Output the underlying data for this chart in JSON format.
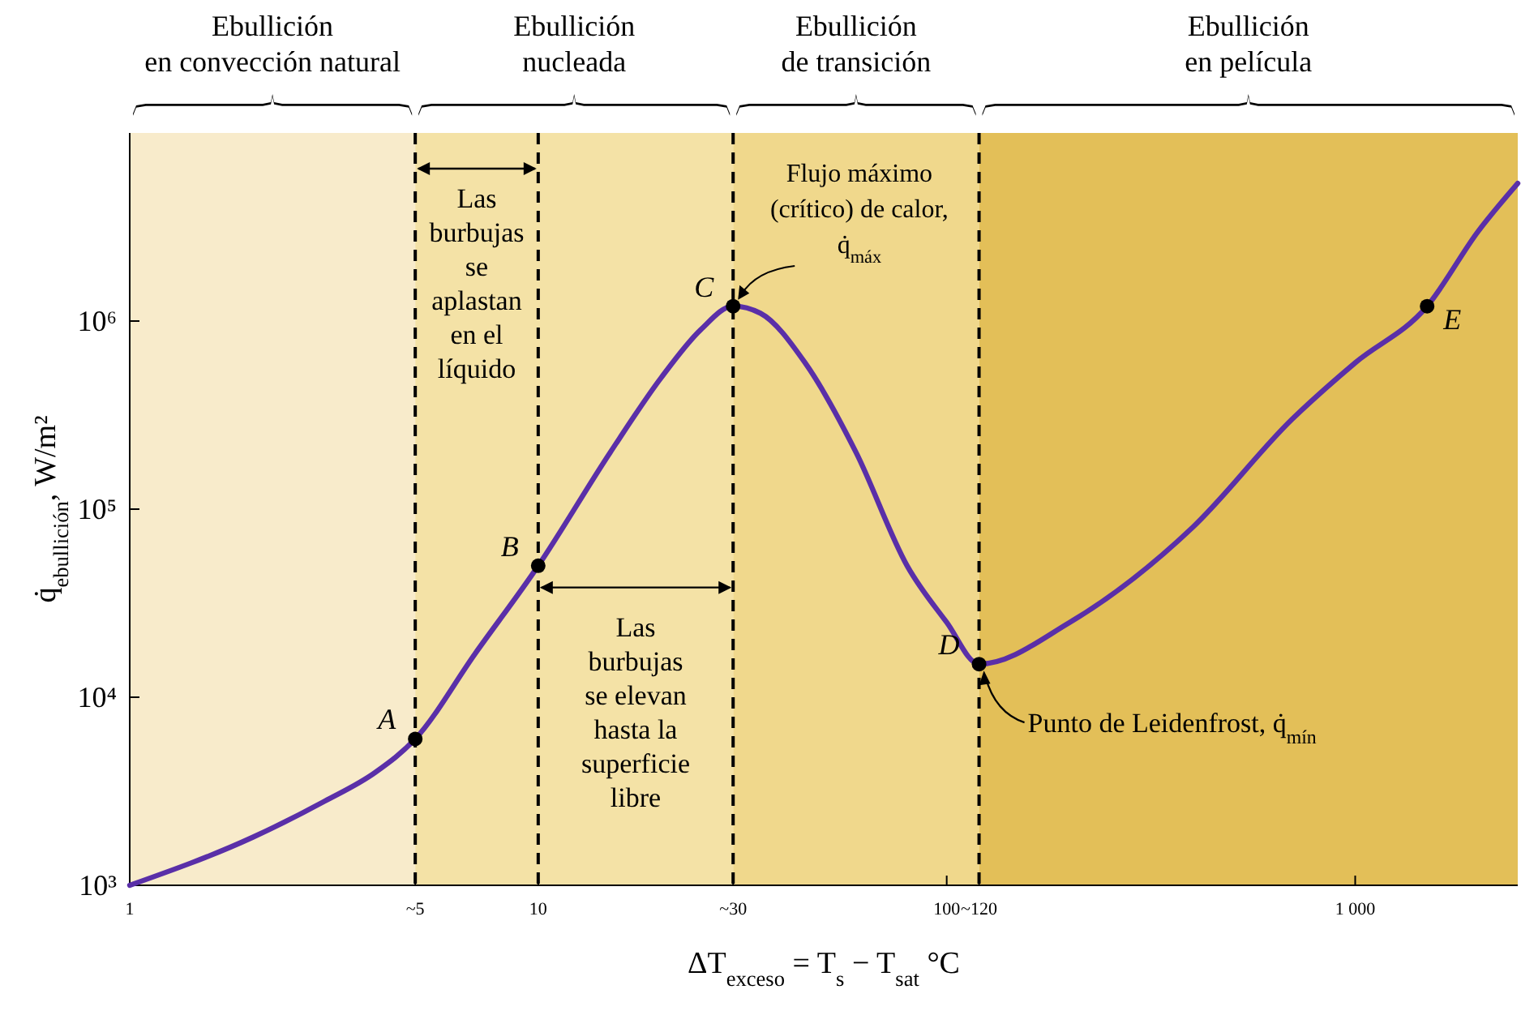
{
  "chart_data": {
    "type": "line",
    "xlabel": "ΔT$_{exceso}$ = T$_{s}$ − T$_{sat}$  °C",
    "ylabel": "q̇$_{ebullición}$, W/m²",
    "log": "xy",
    "xlim": [
      1,
      2500
    ],
    "ylim": [
      1000,
      10000000
    ],
    "xticks": [
      1,
      {
        "value": 5,
        "label": "~5"
      },
      10,
      {
        "value": 30,
        "label": "~30"
      },
      100,
      {
        "value": 120,
        "label": "~120"
      },
      {
        "value": 1000,
        "label": "1 000"
      }
    ],
    "yticks": [
      {
        "value": 1000,
        "label": "10³"
      },
      {
        "value": 10000,
        "label": "10⁴"
      },
      {
        "value": 100000,
        "label": "10⁵"
      },
      {
        "value": 1000000,
        "label": "10⁶"
      }
    ],
    "grid": false,
    "series": [
      {
        "type": "line",
        "color": "#5a2fa8",
        "marker": "none",
        "x": [
          1,
          2,
          3,
          4,
          5,
          7,
          10,
          15,
          20,
          25,
          30,
          35,
          45,
          60,
          80,
          100,
          120,
          200,
          400,
          700,
          1000,
          1500,
          2000,
          2500
        ],
        "values": [
          1000,
          1800,
          2800,
          4000,
          6000,
          17000,
          50000,
          200000,
          500000,
          900000,
          1200000,
          1100000,
          600000,
          200000,
          50000,
          25000,
          15000,
          25000,
          80000,
          300000,
          600000,
          1200000,
          3000000,
          5400000
        ]
      },
      {
        "type": "scatter",
        "color": "#000000",
        "marker": "circle",
        "x": [
          5,
          10,
          30,
          120,
          1500
        ],
        "values": [
          6000,
          50000,
          1200000,
          15000,
          1200000
        ]
      }
    ],
    "bands": [
      {
        "axis": "x",
        "from": 1,
        "to": 5,
        "label": "Ebullición en convección natural",
        "color": "#f8ebcb"
      },
      {
        "axis": "x",
        "from": 5,
        "to": 30,
        "label": "Ebullición nucleada",
        "color": "#f4e2a6"
      },
      {
        "axis": "x",
        "from": 30,
        "to": 120,
        "label": "Ebullición de transición",
        "color": "#f0d88c"
      },
      {
        "axis": "x",
        "from": 120,
        "to": 2500,
        "label": "Ebullición en película",
        "color": "#e3bf58"
      }
    ],
    "ref_lines": [
      {
        "axis": "x",
        "value": 5,
        "line_style": "dashed",
        "color": "#000000"
      },
      {
        "axis": "x",
        "value": 10,
        "line_style": "dashed",
        "color": "#000000"
      },
      {
        "axis": "x",
        "value": 30,
        "line_style": "dashed",
        "color": "#000000"
      },
      {
        "axis": "x",
        "value": 120,
        "line_style": "dashed",
        "color": "#000000"
      }
    ],
    "annotations": [
      "Las burbujas se aplastan en el líquido",
      "Las burbujas se elevan hasta la superficie libre",
      {
        "text": "Flujo máximo (crítico) de calor, q̇$_{máx}$",
        "x": 30,
        "y": 1200000
      },
      {
        "text": "Punto de Leidenfrost, q̇$_{mín}$",
        "x": 120,
        "y": 15000
      },
      {
        "text": "A",
        "x": 5,
        "y": 6000
      },
      {
        "text": "B",
        "x": 10,
        "y": 50000
      },
      {
        "text": "C",
        "x": 30,
        "y": 1200000
      },
      {
        "text": "D",
        "x": 120,
        "y": 15000
      },
      {
        "text": "E",
        "x": 1500,
        "y": 1200000
      }
    ]
  }
}
